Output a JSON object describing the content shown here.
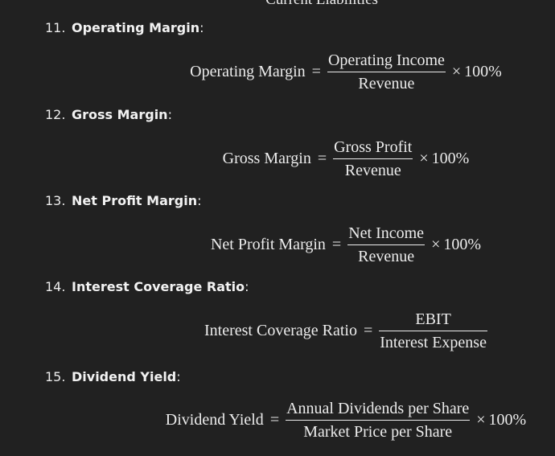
{
  "cutoff_text": "Current Liabilities",
  "items": [
    {
      "number": "11.",
      "name": "Operating Margin",
      "colon": ":",
      "formula": {
        "lhs": "Operating Margin",
        "equals": "=",
        "numerator": "Operating Income",
        "denominator": "Revenue",
        "times": "×",
        "multiplier": "100%"
      }
    },
    {
      "number": "12.",
      "name": "Gross Margin",
      "colon": ":",
      "formula": {
        "lhs": "Gross Margin",
        "equals": "=",
        "numerator": "Gross Profit",
        "denominator": "Revenue",
        "times": "×",
        "multiplier": "100%"
      }
    },
    {
      "number": "13.",
      "name": "Net Profit Margin",
      "colon": ":",
      "formula": {
        "lhs": "Net Profit Margin",
        "equals": "=",
        "numerator": "Net Income",
        "denominator": "Revenue",
        "times": "×",
        "multiplier": "100%"
      }
    },
    {
      "number": "14.",
      "name": "Interest Coverage Ratio",
      "colon": ":",
      "formula": {
        "lhs": "Interest Coverage Ratio",
        "equals": "=",
        "numerator": "EBIT",
        "denominator": "Interest Expense",
        "times": "",
        "multiplier": ""
      }
    },
    {
      "number": "15.",
      "name": "Dividend Yield",
      "colon": ":",
      "formula": {
        "lhs": "Dividend Yield",
        "equals": "=",
        "numerator": "Annual Dividends per Share",
        "denominator": "Market Price per Share",
        "times": "×",
        "multiplier": "100%"
      }
    }
  ]
}
